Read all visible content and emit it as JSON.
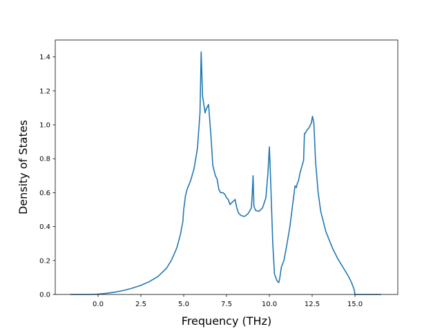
{
  "chart_data": {
    "type": "line",
    "title": "",
    "xlabel": "Frequency (THz)",
    "ylabel": "Density of States",
    "xlim": [
      -2.5,
      17.5
    ],
    "ylim": [
      0.0,
      1.5
    ],
    "xticks": [
      0.0,
      2.5,
      5.0,
      7.5,
      10.0,
      12.5,
      15.0
    ],
    "xtick_labels": [
      "0.0",
      "2.5",
      "5.0",
      "7.5",
      "10.0",
      "12.5",
      "15.0"
    ],
    "yticks": [
      0.0,
      0.2,
      0.4,
      0.6,
      0.8,
      1.0,
      1.2,
      1.4
    ],
    "ytick_labels": [
      "0.0",
      "0.2",
      "0.4",
      "0.6",
      "0.8",
      "1.0",
      "1.2",
      "1.4"
    ],
    "grid": false,
    "legend": false,
    "colors": {
      "line": "#1f77b4"
    },
    "series": [
      {
        "x": [
          -1.6,
          -0.5,
          0.0,
          0.5,
          1.0,
          1.5,
          2.0,
          2.5,
          3.0,
          3.5,
          4.0,
          4.3,
          4.6,
          4.8,
          4.95,
          5.0,
          5.1,
          5.2,
          5.4,
          5.6,
          5.8,
          5.95,
          6.02,
          6.1,
          6.25,
          6.3,
          6.45,
          6.58,
          6.7,
          6.85,
          6.95,
          7.05,
          7.15,
          7.3,
          7.4,
          7.5,
          7.6,
          7.7,
          7.9,
          8.0,
          8.1,
          8.2,
          8.35,
          8.55,
          8.75,
          8.95,
          9.0,
          9.05,
          9.1,
          9.2,
          9.4,
          9.6,
          9.8,
          9.92,
          10.0,
          10.03,
          10.1,
          10.2,
          10.3,
          10.45,
          10.55,
          10.6,
          10.7,
          10.85,
          11.0,
          11.2,
          11.4,
          11.5,
          11.58,
          11.62,
          11.7,
          11.8,
          12.0,
          12.05,
          12.1,
          12.2,
          12.3,
          12.45,
          12.52,
          12.6,
          12.7,
          12.85,
          13.0,
          13.3,
          13.7,
          14.0,
          14.3,
          14.6,
          14.8,
          14.95,
          15.0,
          15.1,
          15.5,
          16.0,
          16.5
        ],
        "y": [
          0.0,
          0.0,
          0.002,
          0.007,
          0.014,
          0.024,
          0.037,
          0.054,
          0.076,
          0.106,
          0.155,
          0.205,
          0.275,
          0.35,
          0.43,
          0.5,
          0.58,
          0.62,
          0.67,
          0.74,
          0.86,
          1.07,
          1.43,
          1.17,
          1.07,
          1.09,
          1.12,
          0.95,
          0.76,
          0.7,
          0.68,
          0.62,
          0.6,
          0.6,
          0.59,
          0.57,
          0.56,
          0.53,
          0.55,
          0.56,
          0.51,
          0.48,
          0.465,
          0.46,
          0.475,
          0.51,
          0.59,
          0.7,
          0.52,
          0.495,
          0.49,
          0.51,
          0.57,
          0.72,
          0.87,
          0.8,
          0.6,
          0.3,
          0.12,
          0.08,
          0.07,
          0.09,
          0.16,
          0.2,
          0.28,
          0.4,
          0.56,
          0.64,
          0.63,
          0.65,
          0.67,
          0.72,
          0.79,
          0.95,
          0.95,
          0.97,
          0.98,
          1.01,
          1.05,
          1.01,
          0.78,
          0.6,
          0.49,
          0.37,
          0.27,
          0.21,
          0.16,
          0.11,
          0.07,
          0.03,
          0.0,
          0.0,
          0.0,
          0.0,
          0.0
        ]
      }
    ]
  }
}
